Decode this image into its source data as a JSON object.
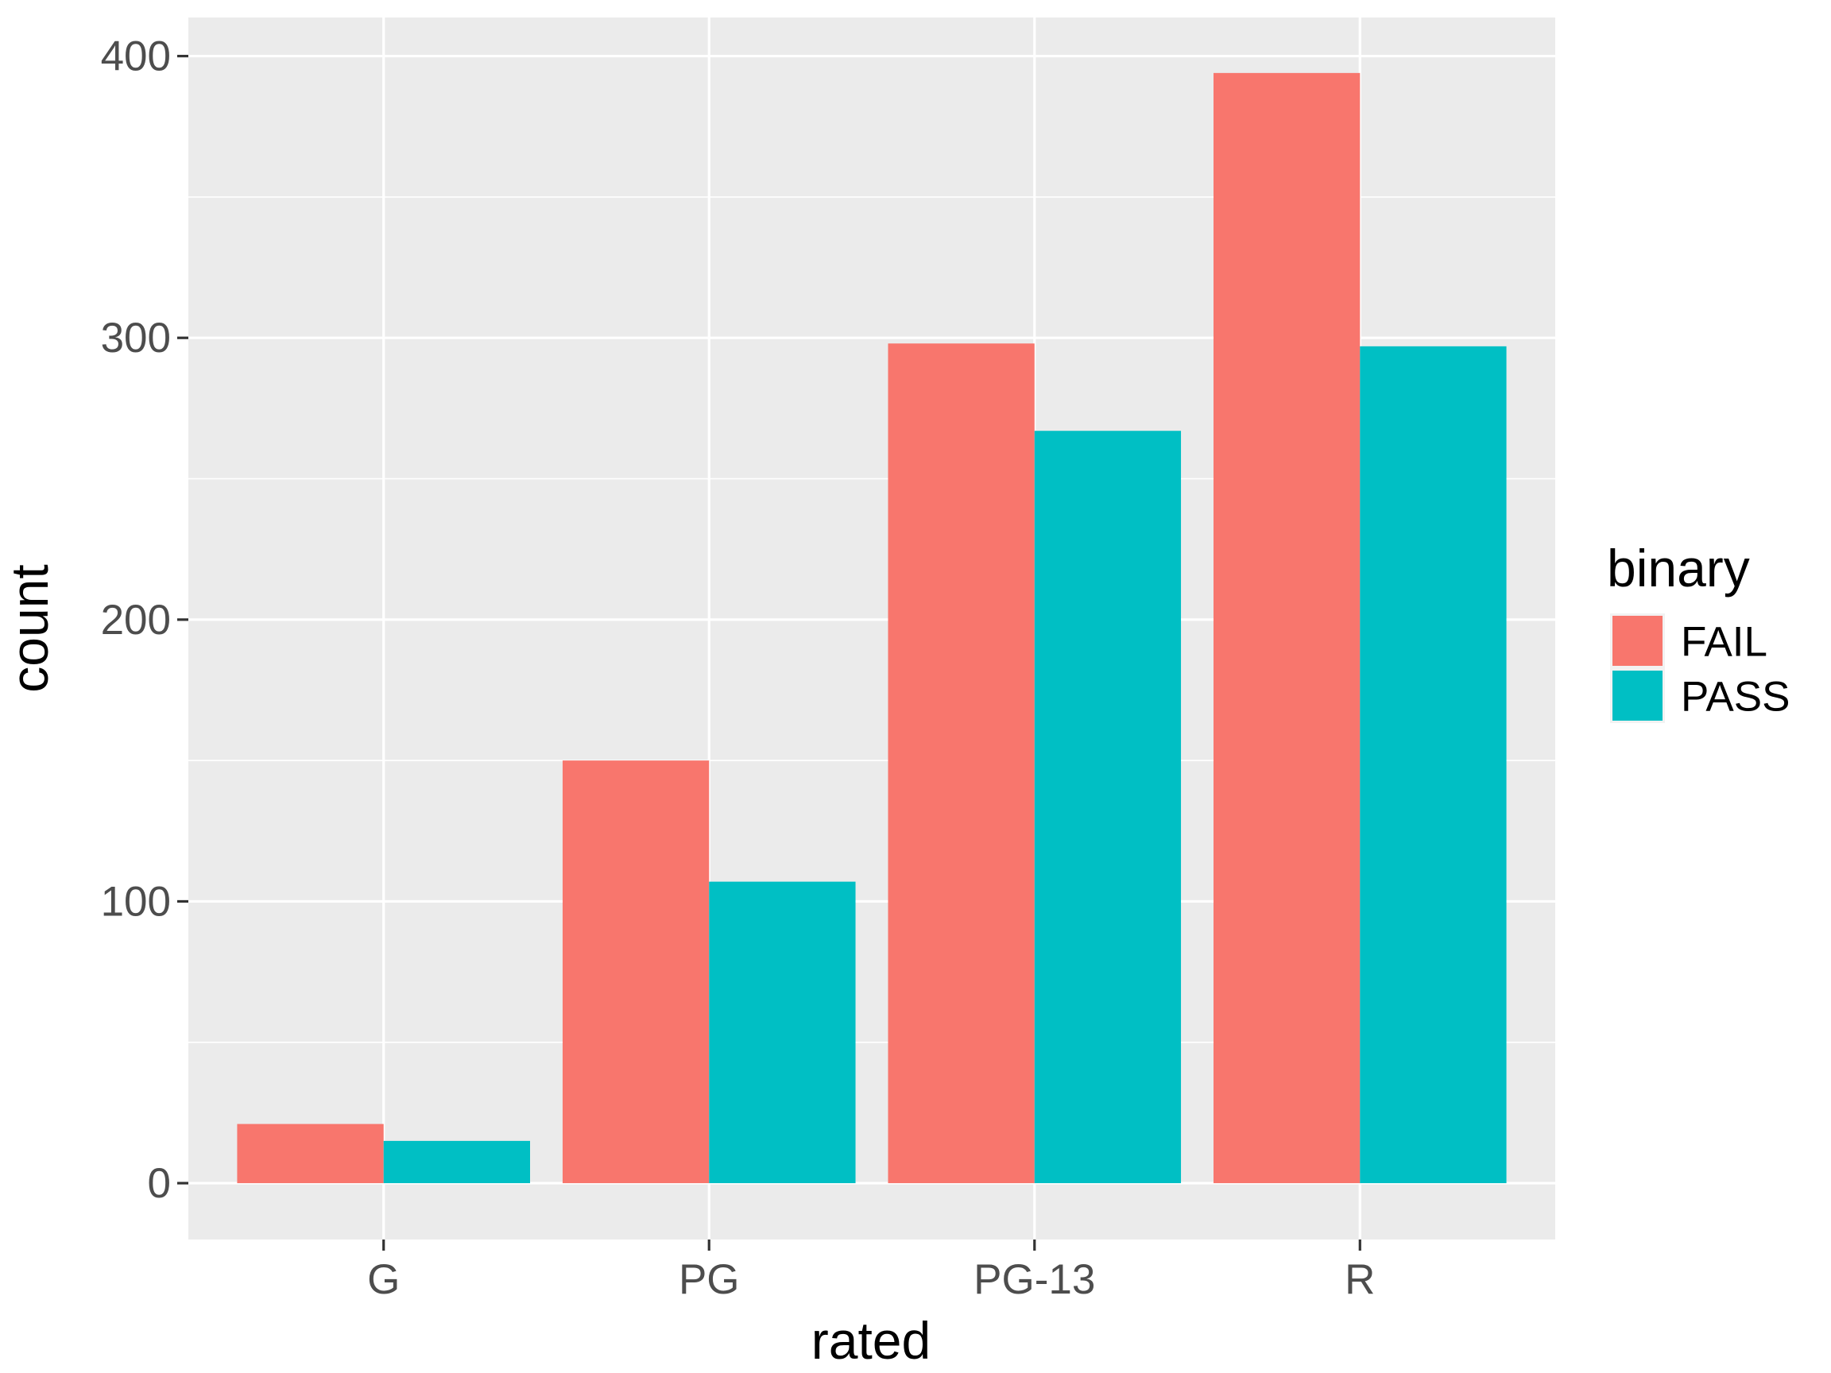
{
  "chart_data": {
    "type": "bar",
    "categories": [
      "G",
      "PG",
      "PG-13",
      "R"
    ],
    "series": [
      {
        "name": "FAIL",
        "color": "#F8766D",
        "values": [
          21,
          150,
          298,
          394
        ]
      },
      {
        "name": "PASS",
        "color": "#00BFC4",
        "values": [
          15,
          107,
          267,
          297
        ]
      }
    ],
    "xlabel": "rated",
    "ylabel": "count",
    "ylim": [
      -20,
      413.7
    ],
    "yticks": [
      0,
      100,
      200,
      300,
      400
    ],
    "yticks_minor": [
      50,
      150,
      250,
      350
    ],
    "grid": true,
    "legend": {
      "title": "binary",
      "position": "right"
    },
    "panel_color": "#EBEBEB"
  }
}
